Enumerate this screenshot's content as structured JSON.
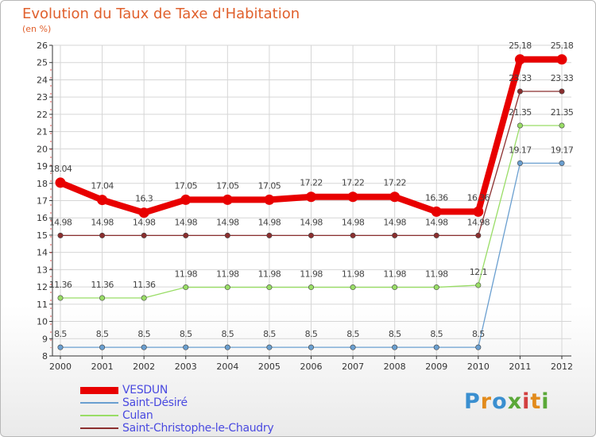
{
  "title": "Evolution du Taux de Taxe d'Habitation",
  "unit": "(en %)",
  "brand": "Proxiti",
  "chart_data": {
    "type": "line",
    "title": "Evolution du Taux de Taxe d'Habitation",
    "ylabel": "(en %)",
    "xlabel": "",
    "x": [
      "2000",
      "2001",
      "2002",
      "2003",
      "2004",
      "2005",
      "2006",
      "2007",
      "2008",
      "2009",
      "2010",
      "2011",
      "2012"
    ],
    "ylim": [
      8,
      26
    ],
    "yticks": [
      8,
      9,
      10,
      11,
      12,
      13,
      14,
      15,
      16,
      17,
      18,
      19,
      20,
      21,
      22,
      23,
      24,
      25,
      26
    ],
    "grid": true,
    "legend_position": "bottom-left",
    "series": [
      {
        "name": "VESDUN",
        "color": "#e80000",
        "values": [
          18.04,
          17.04,
          16.3,
          17.05,
          17.05,
          17.05,
          17.22,
          17.22,
          17.22,
          16.36,
          16.36,
          25.18,
          25.18
        ],
        "labels": [
          "18.04",
          "17.04",
          "16.3",
          "17.05",
          "17.05",
          "17.05",
          "17.22",
          "17.22",
          "17.22",
          "16.36",
          "16.36",
          "25.18",
          "25.18"
        ]
      },
      {
        "name": "Saint-Désiré",
        "color": "#6a9fd0",
        "values": [
          8.5,
          8.5,
          8.5,
          8.5,
          8.5,
          8.5,
          8.5,
          8.5,
          8.5,
          8.5,
          8.5,
          19.17,
          19.17
        ],
        "labels": [
          "8.5",
          "8.5",
          "8.5",
          "8.5",
          "8.5",
          "8.5",
          "8.5",
          "8.5",
          "8.5",
          "8.5",
          "8.5",
          "19.17",
          "19.17"
        ]
      },
      {
        "name": "Culan",
        "color": "#99dd66",
        "values": [
          11.36,
          11.36,
          11.36,
          11.98,
          11.98,
          11.98,
          11.98,
          11.98,
          11.98,
          11.98,
          12.1,
          21.35,
          21.35
        ],
        "labels": [
          "11.36",
          "11.36",
          "11.36",
          "11.98",
          "11.98",
          "11.98",
          "11.98",
          "11.98",
          "11.98",
          "11.98",
          "12.1",
          "21.35",
          "21.35"
        ]
      },
      {
        "name": "Saint-Christophe-le-Chaudry",
        "color": "#8b2f2f",
        "values": [
          14.98,
          14.98,
          14.98,
          14.98,
          14.98,
          14.98,
          14.98,
          14.98,
          14.98,
          14.98,
          14.98,
          23.33,
          23.33
        ],
        "labels": [
          "14.98",
          "14.98",
          "14.98",
          "14.98",
          "14.98",
          "14.98",
          "14.98",
          "14.98",
          "14.98",
          "14.98",
          "14.98",
          "23.33",
          "23.33"
        ]
      }
    ]
  }
}
